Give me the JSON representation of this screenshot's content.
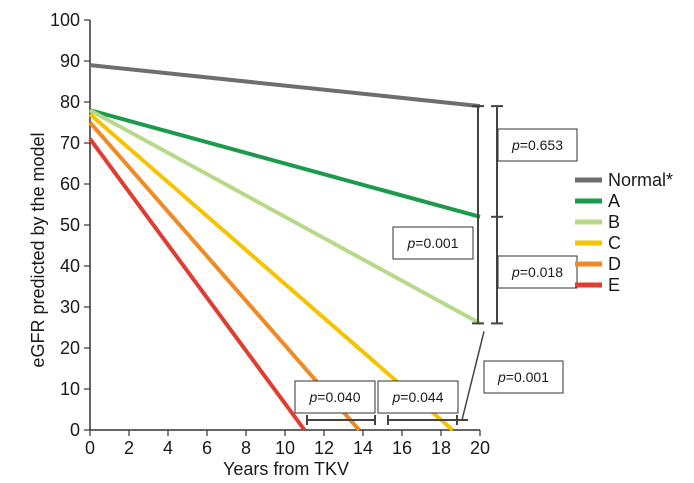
{
  "chart_data": {
    "type": "line",
    "title": "",
    "xlabel": "Years from TKV",
    "ylabel": "eGFR predicted by the model",
    "xlim": [
      0,
      20
    ],
    "ylim": [
      0,
      100
    ],
    "x_ticks": [
      0,
      2,
      4,
      6,
      8,
      10,
      12,
      14,
      16,
      18,
      20
    ],
    "y_ticks": [
      0,
      10,
      20,
      30,
      40,
      50,
      60,
      70,
      80,
      90,
      100
    ],
    "grid": false,
    "legend_position": "right",
    "series": [
      {
        "name": "Normal*",
        "color": "#6e6e6e",
        "x": [
          0,
          20
        ],
        "y": [
          89,
          79
        ]
      },
      {
        "name": "A",
        "color": "#1a9a4a",
        "x": [
          0,
          20
        ],
        "y": [
          78,
          52
        ]
      },
      {
        "name": "B",
        "color": "#b8d98a",
        "x": [
          0,
          20
        ],
        "y": [
          78,
          26
        ]
      },
      {
        "name": "C",
        "color": "#f5c300",
        "x": [
          0,
          18.6
        ],
        "y": [
          77,
          0
        ]
      },
      {
        "name": "D",
        "color": "#f08a24",
        "x": [
          0,
          13.8
        ],
        "y": [
          75,
          0
        ]
      },
      {
        "name": "E",
        "color": "#e03c31",
        "x": [
          0,
          11
        ],
        "y": [
          71,
          0
        ]
      }
    ],
    "annotations": [
      {
        "label": "p",
        "value": "=0.653",
        "compare": [
          "Normal*",
          "A"
        ]
      },
      {
        "label": "p",
        "value": "=0.001",
        "compare": [
          "Normal*",
          "B"
        ]
      },
      {
        "label": "p",
        "value": "=0.018",
        "compare": [
          "A",
          "B"
        ]
      },
      {
        "label": "p",
        "value": "=0.001",
        "compare": [
          "B",
          "C"
        ]
      },
      {
        "label": "p",
        "value": "=0.040",
        "compare": [
          "E",
          "D"
        ]
      },
      {
        "label": "p",
        "value": "=0.044",
        "compare": [
          "D",
          "C"
        ]
      }
    ]
  }
}
